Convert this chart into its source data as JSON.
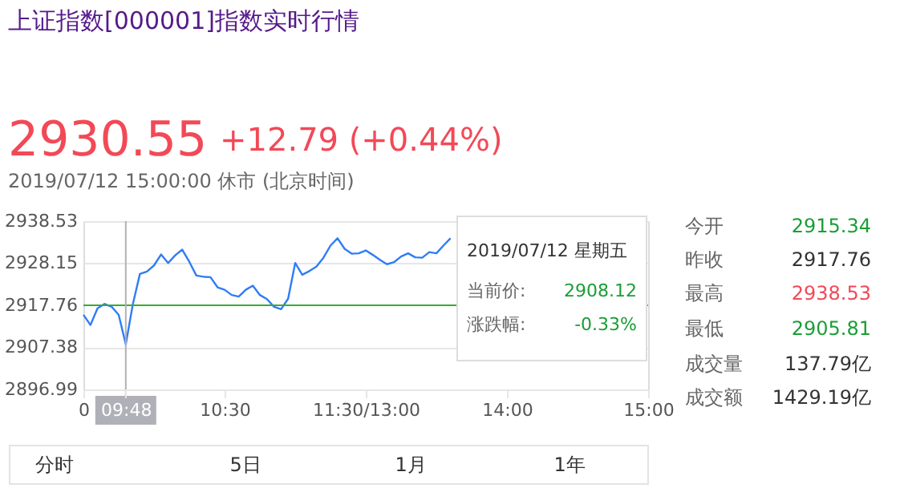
{
  "chart_data": {
    "type": "line",
    "title": "上证指数[000001]指数实时行情",
    "categories": [
      "0",
      null,
      null,
      null,
      null,
      null,
      "09:48",
      null,
      null,
      null,
      null,
      null,
      null,
      null,
      null,
      null,
      null,
      null,
      null,
      null,
      "10:30",
      null,
      null,
      null,
      null,
      null,
      null,
      null,
      null,
      null,
      null,
      null,
      null,
      null,
      null,
      null,
      null,
      null,
      null,
      null,
      "11:30/13:00",
      null,
      null,
      null,
      null,
      null,
      null,
      null,
      null,
      null,
      null,
      null,
      null,
      null,
      null,
      null,
      null,
      null,
      null,
      null,
      "14:00",
      null,
      null,
      null,
      null,
      null,
      null,
      null,
      null,
      null,
      null,
      null,
      null,
      null,
      null,
      null,
      null,
      null,
      null,
      null,
      "15:00"
    ],
    "series": [
      {
        "color": "#2f7df6",
        "values": [
          2915.4,
          2912.9,
          2917.0,
          2918.1,
          2917.4,
          2915.4,
          2908.1,
          2918.0,
          2925.5,
          2926.1,
          2927.6,
          2930.3,
          2928.2,
          2930.1,
          2931.5,
          2928.5,
          2925.1,
          2924.8,
          2924.7,
          2922.2,
          2921.6,
          2920.3,
          2919.9,
          2921.6,
          2922.6,
          2920.3,
          2919.3,
          2917.4,
          2916.8,
          2919.4,
          2928.2,
          2925.3,
          2926.2,
          2927.3,
          2929.5,
          2932.5,
          2934.3,
          2931.7,
          2930.5,
          2930.6,
          2931.3,
          2930.2,
          2929.0,
          2927.9,
          2928.4,
          2929.8,
          2930.6,
          2929.6,
          2929.5,
          2930.9,
          2930.6,
          2932.5,
          2934.3,
          null,
          null,
          null,
          null,
          null,
          null,
          null,
          null,
          null,
          null,
          null,
          null,
          null,
          null,
          null,
          null,
          null,
          null,
          null,
          null,
          null,
          null,
          null,
          null,
          null,
          null,
          null,
          null
        ]
      }
    ],
    "ylim": [
      2896.99,
      2938.53
    ],
    "yticks": [
      2896.99,
      2907.38,
      2917.76,
      2928.15,
      2938.53
    ],
    "grid": "y",
    "ref_lines": [
      {
        "axis": "y",
        "value": 2917.76,
        "color": "#3aaa35"
      },
      {
        "axis": "x",
        "value": "09:48",
        "color": "#b0b0b8"
      }
    ],
    "annotations": [
      "2930.55",
      "+12.79 (+0.44%)",
      "2019/07/12 15:00:00  休市  (北京时间)",
      "2019/07/12 星期五",
      "当前价:",
      "2908.12",
      "涨跌幅:",
      "-0.33%",
      "今开",
      "2915.34",
      "昨收",
      "2917.76",
      "最高",
      "2938.53",
      "最低",
      "2905.81",
      "成交量",
      "137.79亿",
      "成交额",
      "1429.19亿",
      "分时",
      "5日",
      "1月",
      "1年"
    ]
  }
}
